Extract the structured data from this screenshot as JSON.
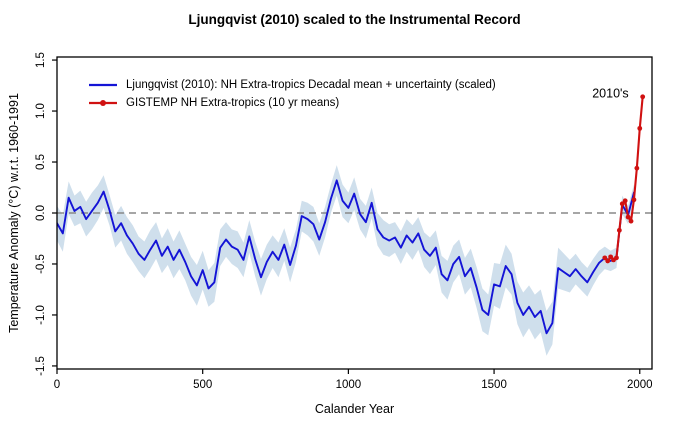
{
  "title": "Ljungqvist (2010) scaled to the Instrumental Record",
  "legend": [
    {
      "label": "Ljungqvist (2010): NH Extra-tropics Decadal mean + uncertainty (scaled)",
      "color": "#1414d6",
      "marker": "line"
    },
    {
      "label": "GISTEMP NH Extra-tropics (10 yr means)",
      "color": "#d01111",
      "marker": "line-dot"
    }
  ],
  "chart_data": {
    "type": "line",
    "title": "Ljungqvist (2010) scaled to the Instrumental Record",
    "xlabel": "Calander Year",
    "ylabel": "Temperature Anomaly (°C) w.r.t. 1960-1991",
    "xlim": [
      0,
      2042
    ],
    "ylim": [
      -1.53,
      1.53
    ],
    "x_ticks": [
      "0",
      "500",
      "1000",
      "1500",
      "2000"
    ],
    "y_ticks": [
      "-1.5",
      "-1.0",
      "-0.5",
      "0.0",
      "0.5",
      "1.0",
      "1.5"
    ],
    "grid": false,
    "zero_line": 0.0,
    "zero_line_color": "#888888",
    "legend_position": "top-left",
    "annotations": [
      {
        "text": "2010's",
        "x": 1962,
        "y": 1.17,
        "anchor": "end"
      }
    ],
    "series": [
      {
        "name": "Ljungqvist (2010): NH Extra-tropics Decadal mean + uncertainty (scaled)",
        "color": "#1414d6",
        "band_color": "#cfdfec",
        "marker": "none",
        "years": [
          0,
          20,
          40,
          60,
          80,
          100,
          120,
          140,
          160,
          180,
          200,
          220,
          240,
          260,
          280,
          300,
          320,
          340,
          360,
          380,
          400,
          420,
          440,
          460,
          480,
          500,
          520,
          540,
          560,
          580,
          600,
          620,
          640,
          660,
          680,
          700,
          720,
          740,
          760,
          780,
          800,
          820,
          840,
          860,
          880,
          900,
          920,
          940,
          960,
          980,
          1000,
          1020,
          1040,
          1060,
          1080,
          1100,
          1120,
          1140,
          1160,
          1180,
          1200,
          1220,
          1240,
          1260,
          1280,
          1300,
          1320,
          1340,
          1360,
          1380,
          1400,
          1420,
          1440,
          1460,
          1480,
          1500,
          1520,
          1540,
          1560,
          1580,
          1600,
          1620,
          1640,
          1660,
          1680,
          1700,
          1720,
          1740,
          1760,
          1780,
          1800,
          1820,
          1840,
          1860,
          1880,
          1900,
          1920,
          1940,
          1960,
          1980
        ],
        "values": [
          -0.1,
          -0.2,
          0.15,
          0.02,
          0.06,
          -0.06,
          0.02,
          0.1,
          0.21,
          0.03,
          -0.18,
          -0.1,
          -0.22,
          -0.3,
          -0.4,
          -0.46,
          -0.36,
          -0.27,
          -0.42,
          -0.33,
          -0.46,
          -0.36,
          -0.48,
          -0.62,
          -0.71,
          -0.56,
          -0.74,
          -0.68,
          -0.34,
          -0.26,
          -0.33,
          -0.36,
          -0.46,
          -0.23,
          -0.45,
          -0.63,
          -0.48,
          -0.38,
          -0.46,
          -0.31,
          -0.51,
          -0.32,
          -0.03,
          -0.06,
          -0.11,
          -0.26,
          -0.09,
          0.14,
          0.32,
          0.12,
          0.05,
          0.19,
          -0.01,
          -0.09,
          0.1,
          -0.16,
          -0.24,
          -0.27,
          -0.24,
          -0.34,
          -0.22,
          -0.29,
          -0.2,
          -0.36,
          -0.42,
          -0.34,
          -0.6,
          -0.66,
          -0.5,
          -0.43,
          -0.62,
          -0.54,
          -0.73,
          -0.95,
          -1.0,
          -0.7,
          -0.72,
          -0.52,
          -0.6,
          -0.88,
          -1.0,
          -0.92,
          -1.02,
          -0.96,
          -1.18,
          -1.08,
          -0.54,
          -0.58,
          -0.62,
          -0.55,
          -0.62,
          -0.68,
          -0.58,
          -0.49,
          -0.44,
          -0.47,
          -0.44,
          0.08,
          -0.02,
          0.2
        ],
        "band_halfwidth": [
          0.17,
          0.18,
          0.16,
          0.15,
          0.16,
          0.17,
          0.18,
          0.17,
          0.16,
          0.15,
          0.16,
          0.17,
          0.18,
          0.18,
          0.17,
          0.18,
          0.19,
          0.18,
          0.17,
          0.18,
          0.18,
          0.19,
          0.18,
          0.19,
          0.2,
          0.19,
          0.18,
          0.19,
          0.18,
          0.17,
          0.17,
          0.18,
          0.17,
          0.16,
          0.17,
          0.18,
          0.17,
          0.16,
          0.17,
          0.16,
          0.17,
          0.16,
          0.15,
          0.16,
          0.17,
          0.16,
          0.15,
          0.14,
          0.15,
          0.16,
          0.15,
          0.16,
          0.15,
          0.16,
          0.15,
          0.16,
          0.17,
          0.16,
          0.15,
          0.16,
          0.16,
          0.17,
          0.16,
          0.17,
          0.18,
          0.17,
          0.18,
          0.19,
          0.18,
          0.17,
          0.18,
          0.19,
          0.2,
          0.21,
          0.2,
          0.21,
          0.22,
          0.21,
          0.2,
          0.21,
          0.22,
          0.21,
          0.22,
          0.21,
          0.22,
          0.21,
          0.2,
          0.18,
          0.16,
          0.15,
          0.14,
          0.14,
          0.13,
          0.12,
          0.11,
          0.1,
          0.1,
          0.09,
          0.09,
          0.08
        ]
      },
      {
        "name": "GISTEMP NH Extra-tropics (10 yr means)",
        "color": "#d01111",
        "marker": "circle",
        "years": [
          1880,
          1890,
          1900,
          1910,
          1920,
          1930,
          1940,
          1950,
          1960,
          1970,
          1980,
          1990,
          2000,
          2010
        ],
        "values": [
          -0.44,
          -0.47,
          -0.43,
          -0.46,
          -0.44,
          -0.17,
          0.09,
          0.12,
          -0.04,
          -0.08,
          0.13,
          0.44,
          0.83,
          1.14
        ]
      }
    ]
  }
}
